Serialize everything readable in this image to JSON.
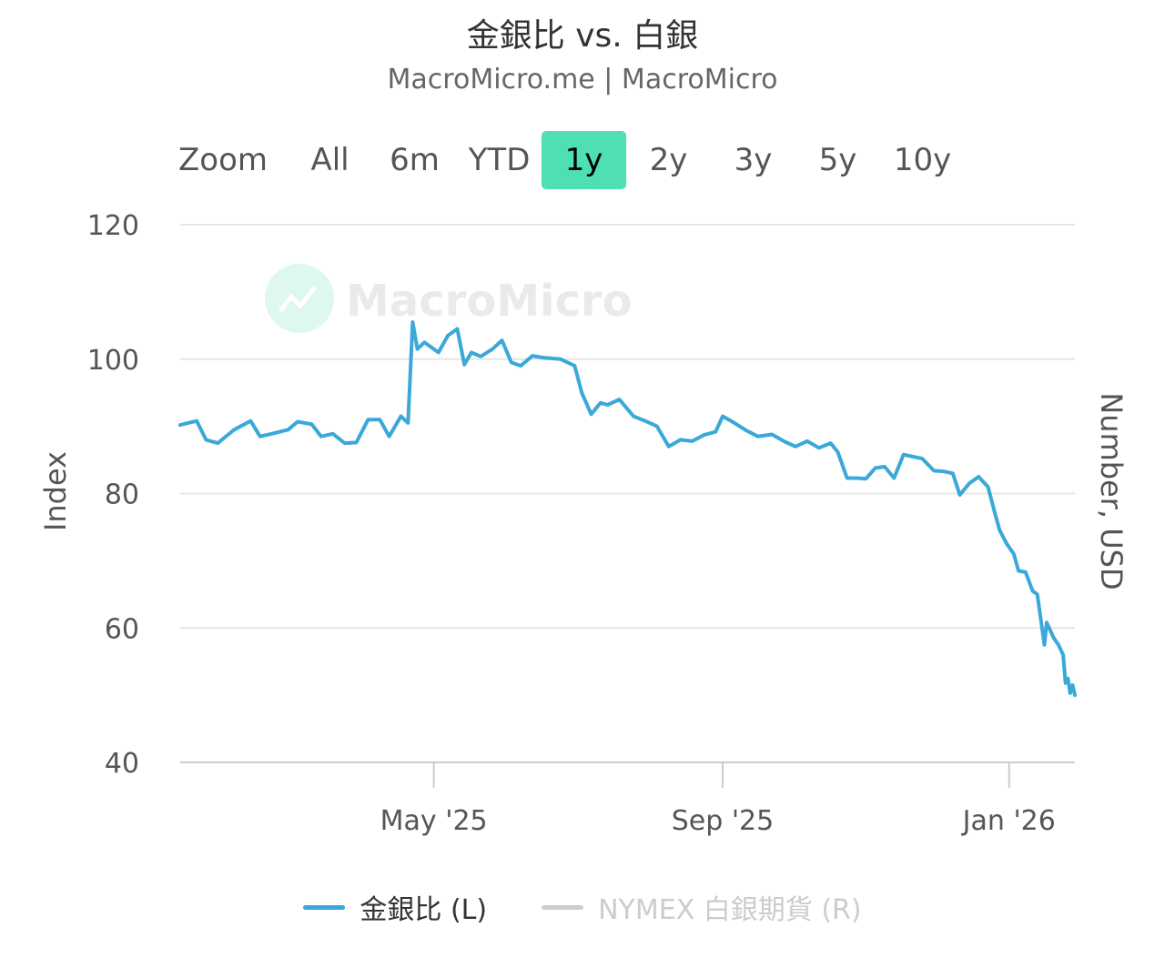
{
  "title": "金銀比 vs. 白銀",
  "subtitle": "MacroMicro.me | MacroMicro",
  "watermark": "MacroMicro",
  "range_selector": {
    "label": "Zoom",
    "buttons": [
      "All",
      "6m",
      "YTD",
      "1y",
      "2y",
      "3y",
      "5y",
      "10y"
    ],
    "active": "1y"
  },
  "colors": {
    "series": "#3aa8d8",
    "active_button": "#4fdfb4",
    "hidden_series": "#cccccc",
    "grid": "#e6e6e6"
  },
  "legend": [
    {
      "label": "金銀比 (L)",
      "color": "#3aa8d8",
      "visible": true
    },
    {
      "label": "NYMEX 白銀期貨 (R)",
      "color": "#cccccc",
      "visible": false
    }
  ],
  "chart_data": {
    "type": "line",
    "yaxis_left": {
      "label": "Index",
      "ticks": [
        40,
        60,
        80,
        100,
        120
      ],
      "range": [
        40,
        120
      ]
    },
    "yaxis_right": {
      "label": "Number, USD"
    },
    "xaxis": {
      "range": [
        "2025-01-13",
        "2026-01-29"
      ],
      "ticks": [
        {
          "date": "2025-05-01",
          "label": "May '25"
        },
        {
          "date": "2025-09-01",
          "label": "Sep '25"
        },
        {
          "date": "2026-01-01",
          "label": "Jan '26"
        }
      ]
    },
    "grid": true,
    "legend_position": "bottom",
    "series": [
      {
        "name": "金銀比 (L)",
        "points": [
          [
            "2025-01-13",
            90.2
          ],
          [
            "2025-01-20",
            90.8
          ],
          [
            "2025-01-24",
            88.0
          ],
          [
            "2025-01-29",
            87.5
          ],
          [
            "2025-02-05",
            89.5
          ],
          [
            "2025-02-12",
            90.8
          ],
          [
            "2025-02-16",
            88.5
          ],
          [
            "2025-02-21",
            88.9
          ],
          [
            "2025-02-28",
            89.5
          ],
          [
            "2025-03-04",
            90.7
          ],
          [
            "2025-03-10",
            90.3
          ],
          [
            "2025-03-14",
            88.5
          ],
          [
            "2025-03-19",
            88.9
          ],
          [
            "2025-03-24",
            87.5
          ],
          [
            "2025-03-29",
            87.6
          ],
          [
            "2025-04-03",
            91.0
          ],
          [
            "2025-04-08",
            91.0
          ],
          [
            "2025-04-12",
            88.5
          ],
          [
            "2025-04-17",
            91.5
          ],
          [
            "2025-04-20",
            90.5
          ],
          [
            "2025-04-22",
            105.5
          ],
          [
            "2025-04-24",
            101.5
          ],
          [
            "2025-04-27",
            102.5
          ],
          [
            "2025-05-03",
            101.0
          ],
          [
            "2025-05-07",
            103.5
          ],
          [
            "2025-05-11",
            104.5
          ],
          [
            "2025-05-14",
            99.2
          ],
          [
            "2025-05-17",
            101.0
          ],
          [
            "2025-05-21",
            100.4
          ],
          [
            "2025-05-26",
            101.5
          ],
          [
            "2025-05-30",
            102.8
          ],
          [
            "2025-06-03",
            99.5
          ],
          [
            "2025-06-07",
            99.0
          ],
          [
            "2025-06-12",
            100.5
          ],
          [
            "2025-06-17",
            100.2
          ],
          [
            "2025-06-24",
            100.0
          ],
          [
            "2025-06-30",
            99.0
          ],
          [
            "2025-07-03",
            95.0
          ],
          [
            "2025-07-07",
            91.8
          ],
          [
            "2025-07-11",
            93.5
          ],
          [
            "2025-07-14",
            93.2
          ],
          [
            "2025-07-19",
            94.0
          ],
          [
            "2025-07-25",
            91.5
          ],
          [
            "2025-07-30",
            90.8
          ],
          [
            "2025-08-04",
            90.0
          ],
          [
            "2025-08-09",
            87.0
          ],
          [
            "2025-08-14",
            88.0
          ],
          [
            "2025-08-19",
            87.8
          ],
          [
            "2025-08-24",
            88.7
          ],
          [
            "2025-08-29",
            89.2
          ],
          [
            "2025-09-01",
            91.5
          ],
          [
            "2025-09-06",
            90.5
          ],
          [
            "2025-09-11",
            89.4
          ],
          [
            "2025-09-16",
            88.5
          ],
          [
            "2025-09-22",
            88.8
          ],
          [
            "2025-09-27",
            87.8
          ],
          [
            "2025-10-02",
            87.0
          ],
          [
            "2025-10-07",
            87.8
          ],
          [
            "2025-10-12",
            86.8
          ],
          [
            "2025-10-17",
            87.5
          ],
          [
            "2025-10-20",
            86.2
          ],
          [
            "2025-10-24",
            82.3
          ],
          [
            "2025-10-28",
            82.3
          ],
          [
            "2025-11-01",
            82.2
          ],
          [
            "2025-11-05",
            83.8
          ],
          [
            "2025-11-09",
            84.0
          ],
          [
            "2025-11-13",
            82.3
          ],
          [
            "2025-11-17",
            85.8
          ],
          [
            "2025-11-21",
            85.5
          ],
          [
            "2025-11-25",
            85.2
          ],
          [
            "2025-11-30",
            83.4
          ],
          [
            "2025-12-04",
            83.3
          ],
          [
            "2025-12-08",
            83.0
          ],
          [
            "2025-12-11",
            79.8
          ],
          [
            "2025-12-15",
            81.5
          ],
          [
            "2025-12-19",
            82.5
          ],
          [
            "2025-12-23",
            81.0
          ],
          [
            "2025-12-26",
            77.0
          ],
          [
            "2025-12-28",
            74.5
          ],
          [
            "2025-12-31",
            72.5
          ],
          [
            "2026-01-03",
            71.0
          ],
          [
            "2026-01-05",
            68.5
          ],
          [
            "2026-01-08",
            68.3
          ],
          [
            "2026-01-11",
            65.5
          ],
          [
            "2026-01-13",
            65.0
          ],
          [
            "2026-01-14",
            62.5
          ],
          [
            "2026-01-16",
            57.5
          ],
          [
            "2026-01-17",
            60.8
          ],
          [
            "2026-01-20",
            58.5
          ],
          [
            "2026-01-22",
            57.5
          ],
          [
            "2026-01-24",
            56.0
          ],
          [
            "2026-01-25",
            51.8
          ],
          [
            "2026-01-26",
            52.5
          ],
          [
            "2026-01-27",
            50.3
          ],
          [
            "2026-01-28",
            51.5
          ],
          [
            "2026-01-29",
            50.0
          ]
        ]
      }
    ]
  }
}
